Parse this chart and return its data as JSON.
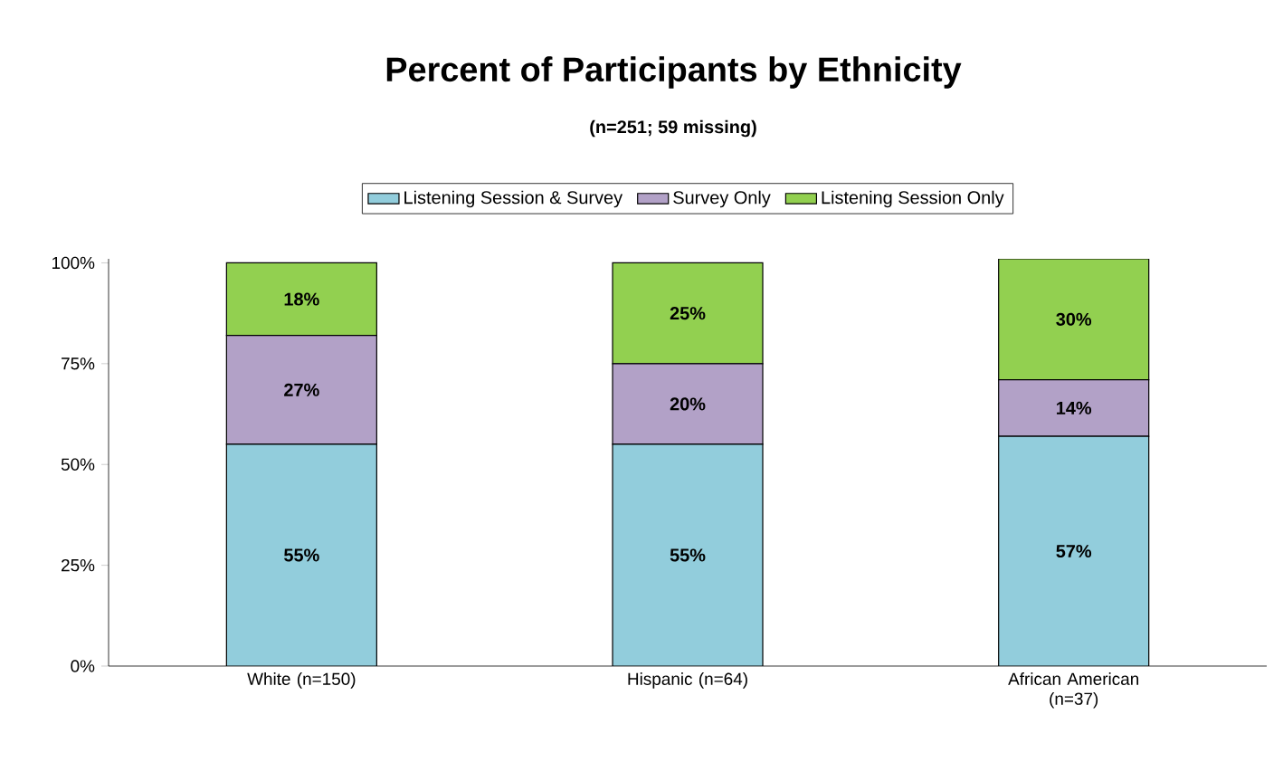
{
  "chart_data": {
    "type": "bar",
    "stacked": true,
    "title": "Percent of Participants by Ethnicity",
    "subtitle": "(n=251; 59 missing)",
    "categories": [
      "White (n=150)",
      "Hispanic (n=64)",
      "African American (n=37)"
    ],
    "series": [
      {
        "name": "Listening Session & Survey",
        "color": "#92cddc",
        "values": [
          55,
          55,
          57
        ],
        "value_labels": [
          "55%",
          "55%",
          "57%"
        ]
      },
      {
        "name": "Survey Only",
        "color": "#b2a1c7",
        "values": [
          27,
          20,
          14
        ],
        "value_labels": [
          "27%",
          "20%",
          "14%"
        ]
      },
      {
        "name": "Listening Session Only",
        "color": "#92d050",
        "values": [
          18,
          25,
          30
        ],
        "value_labels": [
          "18%",
          "25%",
          "30%"
        ]
      }
    ],
    "ylim": [
      0,
      101
    ],
    "yticks": [
      {
        "value": 0,
        "label": "0%"
      },
      {
        "value": 25,
        "label": "25%"
      },
      {
        "value": 50,
        "label": "50%"
      },
      {
        "value": 75,
        "label": "75%"
      },
      {
        "value": 100,
        "label": "100%"
      }
    ],
    "legend": "top",
    "grid": false
  }
}
